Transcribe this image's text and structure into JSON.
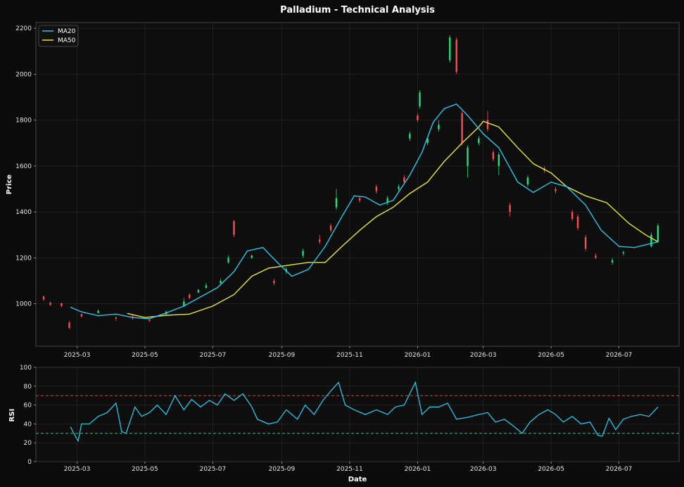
{
  "chart_data": {
    "type": "candlestick",
    "title": "Palladium - Technical Analysis",
    "xlabel": "Date",
    "x_ticks": [
      "2025-03",
      "2025-05",
      "2025-07",
      "2025-09",
      "2025-11",
      "2026-01",
      "2026-03",
      "2026-05",
      "2026-07"
    ],
    "x_range": [
      "2025-01-23",
      "2026-08-24"
    ],
    "colors": {
      "background": "#0b0b0b",
      "up": "#22e07a",
      "down": "#ff4d4d",
      "ma20": "#2ec4e8",
      "ma50": "#e6e63a",
      "rsi": "#2ec4e8",
      "overbought": "#d94040",
      "oversold": "#22c98a",
      "grid": "#2a2a2a"
    },
    "price_panel": {
      "ylabel": "Price",
      "ylim": [
        815,
        2225
      ],
      "y_ticks": [
        1000,
        1200,
        1400,
        1600,
        1800,
        2000,
        2200
      ],
      "legend": [
        "MA20",
        "MA50"
      ],
      "legend_position": "top-left",
      "ma20": [
        [
          "2025-02-23",
          985
        ],
        [
          "2025-03-05",
          965
        ],
        [
          "2025-03-20",
          948
        ],
        [
          "2025-04-05",
          955
        ],
        [
          "2025-04-20",
          940
        ],
        [
          "2025-05-05",
          935
        ],
        [
          "2025-05-20",
          960
        ],
        [
          "2025-06-05",
          990
        ],
        [
          "2025-06-20",
          1030
        ],
        [
          "2025-07-05",
          1070
        ],
        [
          "2025-07-20",
          1140
        ],
        [
          "2025-08-01",
          1230
        ],
        [
          "2025-08-15",
          1245
        ],
        [
          "2025-08-28",
          1180
        ],
        [
          "2025-09-10",
          1120
        ],
        [
          "2025-09-25",
          1150
        ],
        [
          "2025-10-10",
          1250
        ],
        [
          "2025-10-25",
          1380
        ],
        [
          "2025-11-05",
          1470
        ],
        [
          "2025-11-15",
          1465
        ],
        [
          "2025-11-28",
          1430
        ],
        [
          "2025-12-10",
          1450
        ],
        [
          "2025-12-25",
          1560
        ],
        [
          "2026-01-05",
          1660
        ],
        [
          "2026-01-15",
          1790
        ],
        [
          "2026-01-25",
          1850
        ],
        [
          "2026-02-05",
          1870
        ],
        [
          "2026-02-15",
          1820
        ],
        [
          "2026-03-01",
          1740
        ],
        [
          "2026-03-15",
          1680
        ],
        [
          "2026-04-01",
          1530
        ],
        [
          "2026-04-15",
          1485
        ],
        [
          "2026-05-01",
          1530
        ],
        [
          "2026-05-15",
          1510
        ],
        [
          "2026-06-01",
          1430
        ],
        [
          "2026-06-15",
          1320
        ],
        [
          "2026-07-01",
          1250
        ],
        [
          "2026-07-15",
          1245
        ],
        [
          "2026-08-05",
          1270
        ]
      ],
      "ma50": [
        [
          "2025-04-15",
          958
        ],
        [
          "2025-05-01",
          940
        ],
        [
          "2025-05-20",
          950
        ],
        [
          "2025-06-10",
          955
        ],
        [
          "2025-07-01",
          990
        ],
        [
          "2025-07-20",
          1040
        ],
        [
          "2025-08-05",
          1120
        ],
        [
          "2025-08-20",
          1155
        ],
        [
          "2025-09-10",
          1170
        ],
        [
          "2025-09-25",
          1180
        ],
        [
          "2025-10-10",
          1180
        ],
        [
          "2025-10-25",
          1250
        ],
        [
          "2025-11-10",
          1320
        ],
        [
          "2025-11-25",
          1380
        ],
        [
          "2025-12-10",
          1420
        ],
        [
          "2025-12-25",
          1480
        ],
        [
          "2026-01-10",
          1530
        ],
        [
          "2026-01-25",
          1620
        ],
        [
          "2026-02-10",
          1700
        ],
        [
          "2026-02-25",
          1770
        ],
        [
          "2026-03-01",
          1795
        ],
        [
          "2026-03-15",
          1770
        ],
        [
          "2026-04-01",
          1680
        ],
        [
          "2026-04-15",
          1610
        ],
        [
          "2026-05-01",
          1570
        ],
        [
          "2026-05-15",
          1510
        ],
        [
          "2026-06-01",
          1470
        ],
        [
          "2026-06-20",
          1440
        ],
        [
          "2026-07-10",
          1350
        ],
        [
          "2026-07-25",
          1300
        ],
        [
          "2026-08-05",
          1270
        ]
      ],
      "candles": [
        [
          "2025-01-30",
          1032,
          1018,
          1036,
          1012
        ],
        [
          "2025-02-05",
          1005,
          995,
          1010,
          990
        ],
        [
          "2025-02-15",
          1002,
          990,
          1005,
          985
        ],
        [
          "2025-02-22",
          918,
          895,
          925,
          890
        ],
        [
          "2025-03-05",
          955,
          945,
          958,
          940
        ],
        [
          "2025-03-20",
          960,
          970,
          975,
          958
        ],
        [
          "2025-04-05",
          940,
          935,
          945,
          925
        ],
        [
          "2025-04-20",
          945,
          938,
          950,
          930
        ],
        [
          "2025-05-05",
          930,
          925,
          935,
          920
        ],
        [
          "2025-05-20",
          955,
          965,
          970,
          950
        ],
        [
          "2025-06-05",
          990,
          1010,
          1025,
          985
        ],
        [
          "2025-06-10",
          1040,
          1025,
          1045,
          1020
        ],
        [
          "2025-06-18",
          1050,
          1060,
          1065,
          1045
        ],
        [
          "2025-06-25",
          1070,
          1080,
          1090,
          1065
        ],
        [
          "2025-07-08",
          1090,
          1100,
          1110,
          1085
        ],
        [
          "2025-07-15",
          1180,
          1200,
          1210,
          1175
        ],
        [
          "2025-07-20",
          1360,
          1300,
          1365,
          1290
        ],
        [
          "2025-08-05",
          1200,
          1210,
          1215,
          1195
        ],
        [
          "2025-08-25",
          1100,
          1090,
          1110,
          1080
        ],
        [
          "2025-09-05",
          1140,
          1150,
          1160,
          1130
        ],
        [
          "2025-09-20",
          1210,
          1230,
          1240,
          1200
        ],
        [
          "2025-10-05",
          1280,
          1270,
          1300,
          1260
        ],
        [
          "2025-10-15",
          1340,
          1320,
          1350,
          1310
        ],
        [
          "2025-10-20",
          1420,
          1460,
          1500,
          1410
        ],
        [
          "2025-11-10",
          1460,
          1450,
          1470,
          1440
        ],
        [
          "2025-11-25",
          1510,
          1490,
          1520,
          1480
        ],
        [
          "2025-12-05",
          1440,
          1460,
          1470,
          1430
        ],
        [
          "2025-12-15",
          1500,
          1510,
          1520,
          1490
        ],
        [
          "2025-12-20",
          1550,
          1530,
          1560,
          1520
        ],
        [
          "2025-12-25",
          1720,
          1740,
          1750,
          1710
        ],
        [
          "2026-01-01",
          1820,
          1800,
          1830,
          1790
        ],
        [
          "2026-01-03",
          1860,
          1920,
          1930,
          1850
        ],
        [
          "2026-01-10",
          1700,
          1720,
          1730,
          1690
        ],
        [
          "2026-01-20",
          1760,
          1780,
          1800,
          1750
        ],
        [
          "2026-01-30",
          2060,
          2160,
          2170,
          2050
        ],
        [
          "2026-02-05",
          2150,
          2010,
          2160,
          2000
        ],
        [
          "2026-02-10",
          1830,
          1700,
          1840,
          1690
        ],
        [
          "2026-02-15",
          1600,
          1680,
          1690,
          1550
        ],
        [
          "2026-02-25",
          1700,
          1720,
          1730,
          1690
        ],
        [
          "2026-03-05",
          1800,
          1760,
          1840,
          1750
        ],
        [
          "2026-03-10",
          1660,
          1630,
          1670,
          1620
        ],
        [
          "2026-03-15",
          1600,
          1650,
          1660,
          1560
        ],
        [
          "2026-03-25",
          1430,
          1400,
          1440,
          1380
        ],
        [
          "2026-04-10",
          1520,
          1550,
          1560,
          1510
        ],
        [
          "2026-04-25",
          1590,
          1580,
          1600,
          1570
        ],
        [
          "2026-05-05",
          1500,
          1490,
          1510,
          1480
        ],
        [
          "2026-05-20",
          1400,
          1370,
          1410,
          1360
        ],
        [
          "2026-05-25",
          1380,
          1330,
          1390,
          1320
        ],
        [
          "2026-06-01",
          1290,
          1240,
          1300,
          1230
        ],
        [
          "2026-06-10",
          1210,
          1200,
          1220,
          1195
        ],
        [
          "2026-06-25",
          1180,
          1190,
          1200,
          1170
        ],
        [
          "2026-07-05",
          1220,
          1225,
          1230,
          1210
        ],
        [
          "2026-07-30",
          1250,
          1300,
          1310,
          1245
        ],
        [
          "2026-08-05",
          1270,
          1340,
          1350,
          1265
        ]
      ]
    },
    "rsi_panel": {
      "ylabel": "RSI",
      "ylim": [
        0,
        100
      ],
      "y_ticks": [
        0,
        20,
        40,
        60,
        80,
        100
      ],
      "overbought": 70,
      "oversold": 30,
      "rsi": [
        [
          "2025-02-23",
          37
        ],
        [
          "2025-02-28",
          26
        ],
        [
          "2025-03-02",
          22
        ],
        [
          "2025-03-05",
          40
        ],
        [
          "2025-03-12",
          40
        ],
        [
          "2025-03-20",
          48
        ],
        [
          "2025-03-28",
          52
        ],
        [
          "2025-04-05",
          62
        ],
        [
          "2025-04-10",
          32
        ],
        [
          "2025-04-14",
          30
        ],
        [
          "2025-04-22",
          58
        ],
        [
          "2025-04-28",
          48
        ],
        [
          "2025-05-05",
          52
        ],
        [
          "2025-05-12",
          60
        ],
        [
          "2025-05-20",
          50
        ],
        [
          "2025-05-28",
          70
        ],
        [
          "2025-06-05",
          55
        ],
        [
          "2025-06-12",
          66
        ],
        [
          "2025-06-20",
          58
        ],
        [
          "2025-06-28",
          65
        ],
        [
          "2025-07-05",
          60
        ],
        [
          "2025-07-12",
          72
        ],
        [
          "2025-07-20",
          65
        ],
        [
          "2025-07-28",
          72
        ],
        [
          "2025-08-05",
          58
        ],
        [
          "2025-08-10",
          45
        ],
        [
          "2025-08-20",
          40
        ],
        [
          "2025-08-28",
          42
        ],
        [
          "2025-09-05",
          55
        ],
        [
          "2025-09-15",
          45
        ],
        [
          "2025-09-22",
          60
        ],
        [
          "2025-09-30",
          50
        ],
        [
          "2025-10-08",
          65
        ],
        [
          "2025-10-15",
          75
        ],
        [
          "2025-10-22",
          84
        ],
        [
          "2025-10-28",
          60
        ],
        [
          "2025-11-05",
          55
        ],
        [
          "2025-11-15",
          50
        ],
        [
          "2025-11-25",
          55
        ],
        [
          "2025-12-05",
          50
        ],
        [
          "2025-12-12",
          58
        ],
        [
          "2025-12-20",
          60
        ],
        [
          "2025-12-25",
          72
        ],
        [
          "2025-12-30",
          84
        ],
        [
          "2026-01-05",
          50
        ],
        [
          "2026-01-12",
          58
        ],
        [
          "2026-01-20",
          58
        ],
        [
          "2026-01-28",
          62
        ],
        [
          "2026-02-05",
          45
        ],
        [
          "2026-02-15",
          47
        ],
        [
          "2026-02-25",
          50
        ],
        [
          "2026-03-05",
          52
        ],
        [
          "2026-03-12",
          42
        ],
        [
          "2026-03-20",
          45
        ],
        [
          "2026-03-28",
          38
        ],
        [
          "2026-04-05",
          30
        ],
        [
          "2026-04-12",
          42
        ],
        [
          "2026-04-20",
          50
        ],
        [
          "2026-04-28",
          55
        ],
        [
          "2026-05-05",
          50
        ],
        [
          "2026-05-12",
          42
        ],
        [
          "2026-05-20",
          48
        ],
        [
          "2026-05-28",
          40
        ],
        [
          "2026-06-05",
          42
        ],
        [
          "2026-06-12",
          28
        ],
        [
          "2026-06-16",
          27
        ],
        [
          "2026-06-22",
          46
        ],
        [
          "2026-06-28",
          34
        ],
        [
          "2026-07-05",
          45
        ],
        [
          "2026-07-12",
          48
        ],
        [
          "2026-07-20",
          50
        ],
        [
          "2026-07-28",
          48
        ],
        [
          "2026-08-05",
          58
        ]
      ]
    }
  }
}
